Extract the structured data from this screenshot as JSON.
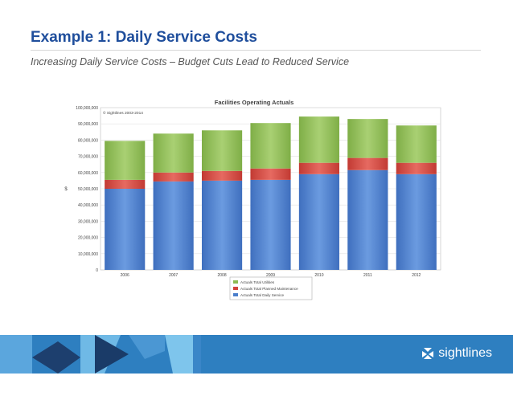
{
  "slide": {
    "title": "Example 1: Daily Service Costs",
    "subtitle": "Increasing Daily Service Costs – Budget Cuts Lead to Reduced Service"
  },
  "chart_data": {
    "type": "bar",
    "stacked": true,
    "title": "Facilities Operating Actuals",
    "copyright": "© Sightlines 2003-2014",
    "ylabel": "$",
    "xlabel": "",
    "ylim": [
      0,
      100000000
    ],
    "yticks": [
      0,
      10000000,
      20000000,
      30000000,
      40000000,
      50000000,
      60000000,
      70000000,
      80000000,
      90000000,
      100000000
    ],
    "ytick_labels": [
      "0",
      "10,000,000",
      "20,000,000",
      "30,000,000",
      "40,000,000",
      "50,000,000",
      "60,000,000",
      "70,000,000",
      "80,000,000",
      "90,000,000",
      "100,000,000"
    ],
    "grid": true,
    "legend_position": "bottom",
    "categories": [
      "2006",
      "2007",
      "2008",
      "2009",
      "2010",
      "2011",
      "2012"
    ],
    "series": [
      {
        "name": "Actuals Total Daily Service",
        "color": "#4a7ecb",
        "values": [
          50000000,
          54500000,
          55000000,
          55500000,
          59000000,
          61500000,
          59000000
        ]
      },
      {
        "name": "Actuals Total Planned Maintenance",
        "color": "#d3433b",
        "values": [
          5500000,
          5500000,
          6000000,
          7000000,
          7000000,
          7500000,
          7000000
        ]
      },
      {
        "name": "Actuals Total Utilities",
        "color": "#8dbb52",
        "values": [
          24000000,
          24000000,
          25000000,
          28000000,
          28500000,
          24000000,
          23000000
        ]
      }
    ],
    "legend_order": [
      "Actuals Total Utilities",
      "Actuals Total Planned Maintenance",
      "Actuals Total Daily Service"
    ]
  },
  "footer": {
    "brand_name": "sightlines",
    "logo_icon": "sightlines-logo-icon",
    "band_color": "#2e7fc0"
  }
}
